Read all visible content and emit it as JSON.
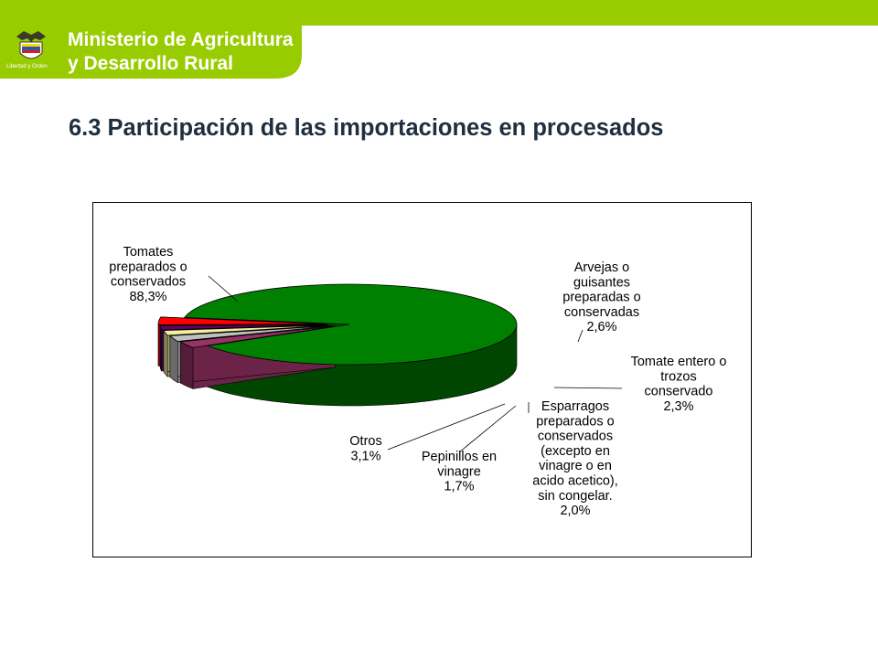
{
  "header": {
    "ministry_line1": "Ministerio de Agricultura",
    "ministry_line2": "y Desarrollo Rural",
    "motto": "Libertad y Orden",
    "brand_color": "#99cc00"
  },
  "page": {
    "title": "6.3 Participación de las importaciones en procesados"
  },
  "chart_data": {
    "type": "pie",
    "style": "3d-exploded",
    "slices": [
      {
        "label_lines": [
          "Tomates",
          "preparados o",
          "conservados",
          "88,3%"
        ],
        "value": 88.3,
        "color": "#008000"
      },
      {
        "label_lines": [
          "Arvejas o",
          "guisantes",
          "preparadas o",
          "conservadas",
          "2,6%"
        ],
        "value": 2.6,
        "color": "#993366"
      },
      {
        "label_lines": [
          "Tomate entero o",
          "trozos",
          "conservado",
          "2,3%"
        ],
        "value": 2.3,
        "color": "#c0c0c0"
      },
      {
        "label_lines": [
          "Esparragos",
          "preparados o",
          "conservados",
          "(excepto en",
          "vinagre o en",
          "acido acetico),",
          "sin congelar.",
          "2,0%"
        ],
        "value": 2.0,
        "color": "#f0f0a0"
      },
      {
        "label_lines": [
          "Pepinillos en",
          "vinagre",
          "1,7%"
        ],
        "value": 1.7,
        "color": "#660066"
      },
      {
        "label_lines": [
          "Otros",
          "3,1%"
        ],
        "value": 3.1,
        "color": "#ff0000"
      }
    ]
  }
}
